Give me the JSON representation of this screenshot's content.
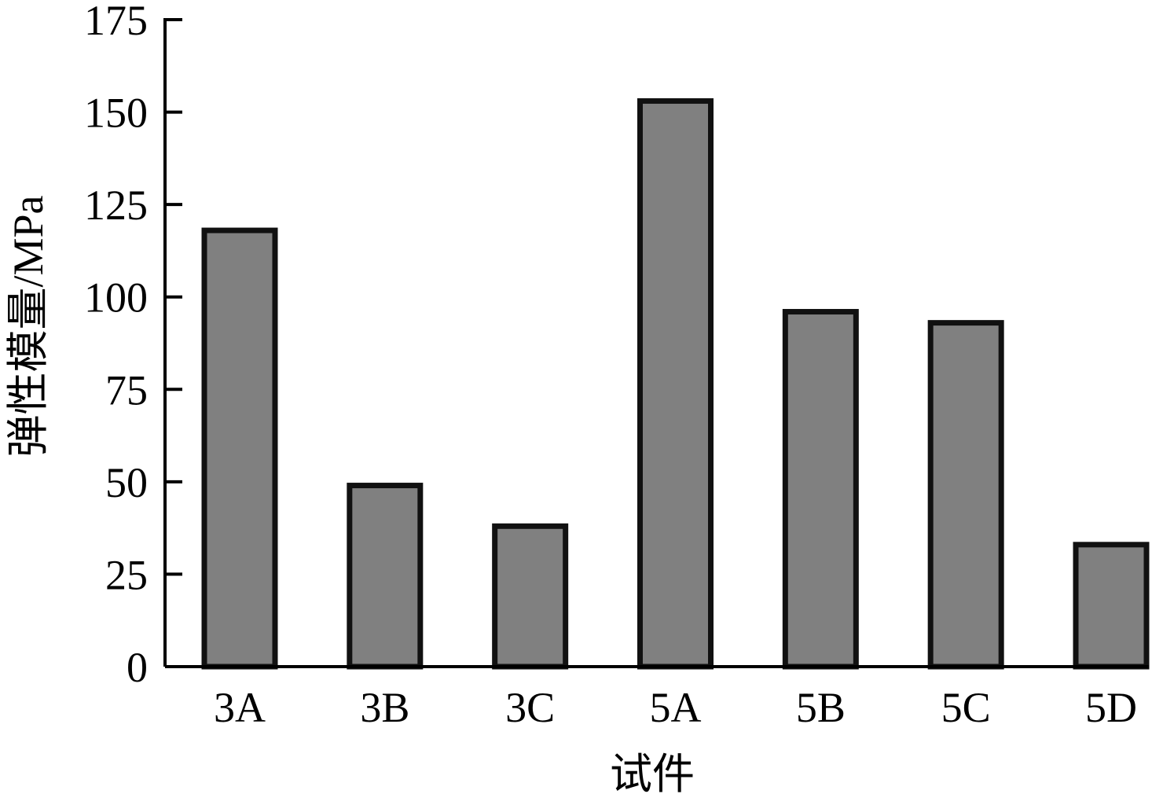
{
  "chart_data": {
    "type": "bar",
    "categories": [
      "3A",
      "3B",
      "3C",
      "5A",
      "5B",
      "5C",
      "5D"
    ],
    "values": [
      118,
      49,
      38,
      153,
      96,
      93,
      33
    ],
    "xlabel": "试件",
    "ylabel": "弹性模量/MPa",
    "ylim": [
      0,
      175
    ],
    "yticks": [
      "0",
      "25",
      "50",
      "75",
      "100",
      "125",
      "150",
      "175"
    ],
    "grid": false,
    "bar_color": "#808080",
    "bar_edge_color": "#111111"
  }
}
